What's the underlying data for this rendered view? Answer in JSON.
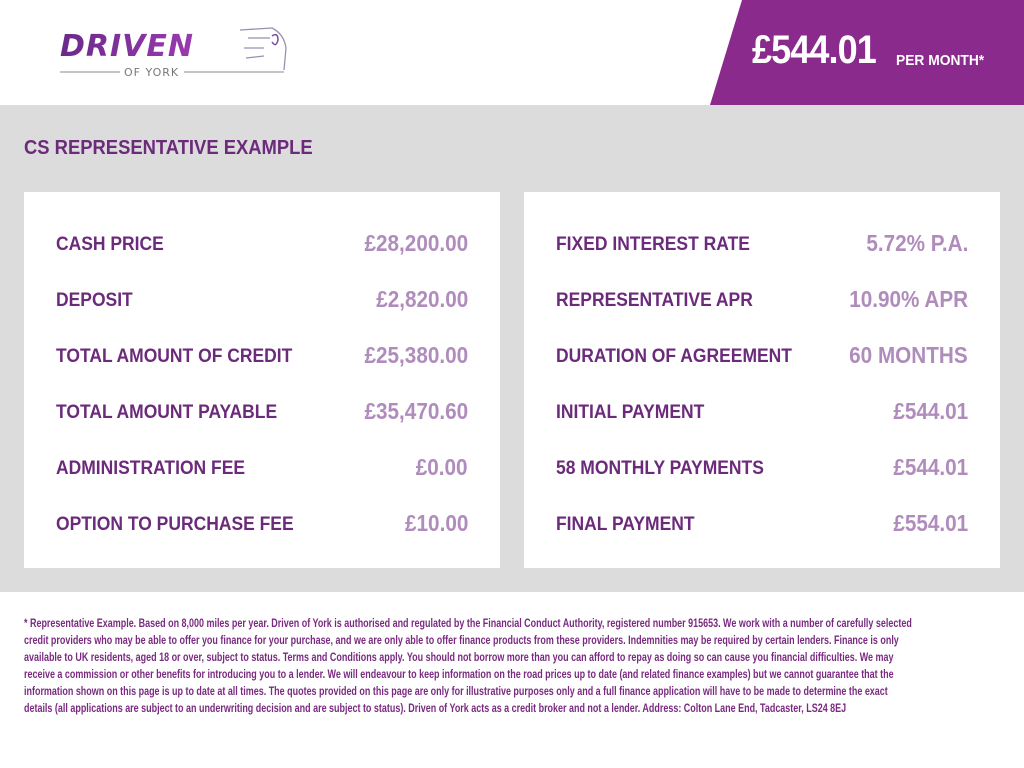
{
  "logo": {
    "text": "DRIVEN",
    "subtext": "OF YORK"
  },
  "monthly_price": {
    "amount": "£544.01",
    "suffix": "PER MONTH*"
  },
  "section_title": "CS REPRESENTATIVE EXAMPLE",
  "left_card": [
    {
      "label": "CASH PRICE",
      "value": "£28,200.00"
    },
    {
      "label": "DEPOSIT",
      "value": "£2,820.00"
    },
    {
      "label": "TOTAL AMOUNT OF CREDIT",
      "value": "£25,380.00"
    },
    {
      "label": "TOTAL AMOUNT PAYABLE",
      "value": "£35,470.60"
    },
    {
      "label": "ADMINISTRATION FEE",
      "value": "£0.00"
    },
    {
      "label": "OPTION TO PURCHASE FEE",
      "value": "£10.00"
    }
  ],
  "right_card": [
    {
      "label": "FIXED INTEREST RATE",
      "value": "5.72% P.A."
    },
    {
      "label": "REPRESENTATIVE APR",
      "value": "10.90% APR"
    },
    {
      "label": "DURATION OF AGREEMENT",
      "value": "60 MONTHS"
    },
    {
      "label": "INITIAL PAYMENT",
      "value": "£544.01"
    },
    {
      "label": "58 MONTHLY PAYMENTS",
      "value": "£544.01"
    },
    {
      "label": "FINAL PAYMENT",
      "value": "£554.01"
    }
  ],
  "disclaimer_lines": [
    "* Representative Example. Based on 8,000 miles per year. Driven of York is authorised and regulated by the Financial Conduct Authority, registered number 915653. We work with a number of carefully selected",
    "credit providers who may be able to offer you finance for your purchase, and we are only able to offer finance products from these providers. Indemnities may be required by certain lenders. Finance is only",
    "available to UK residents, aged 18 or over, subject to status. Terms and Conditions apply. You should not borrow more than you can afford to repay as doing so can cause you financial difficulties. We may",
    "receive a commission or other benefits for introducing you to a lender. We will endeavour to keep information on the road prices up to date (and related finance examples) but we cannot guarantee that the",
    "information shown on this page is up to date at all times. The quotes provided on this page are only for illustrative purposes only and a full finance application will have to be made to determine the exact",
    "details (all applications are subject to an underwriting decision and are subject to status). Driven of York acts as a credit broker and not a lender. Address: Colton Lane End, Tadcaster, LS24 8EJ"
  ],
  "colors": {
    "brand_purple": "#8b2a8d",
    "label": "#6b2a7a",
    "value": "#b08cbc",
    "panel_bg": "#dcdcdc"
  }
}
